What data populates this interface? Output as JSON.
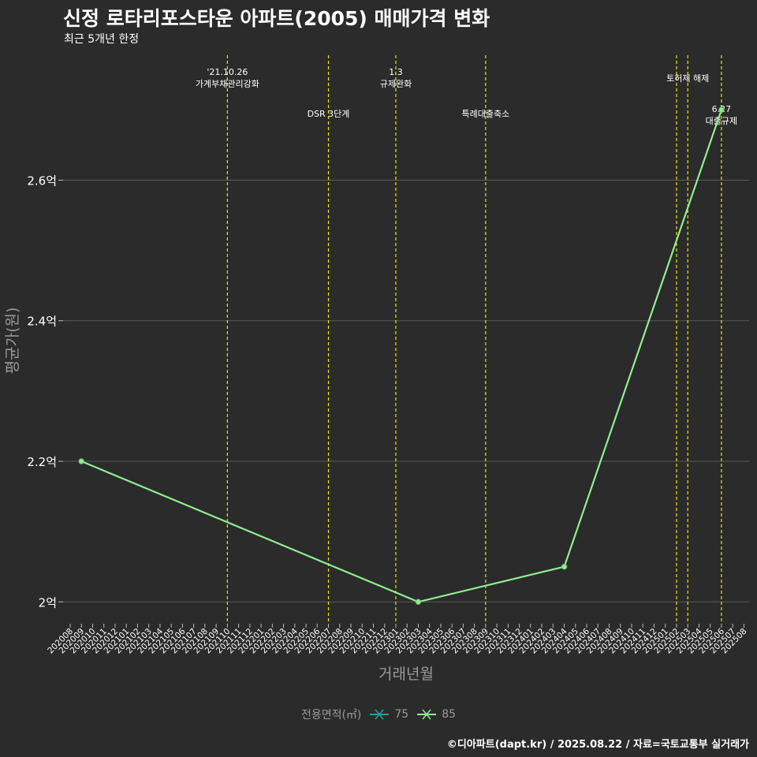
{
  "header": {
    "title": "신정 로타리포스타운 아파트(2005) 매매가격 변화",
    "subtitle": "최근 5개년 한정"
  },
  "caption": "©디아파트(dapt.kr) / 2025.08.22 / 자료=국토교통부 실거래가",
  "colors": {
    "background": "#2b2b2b",
    "grid": "#5a5a5a",
    "series_75": "#2a9d9d",
    "series_85": "#90ee90",
    "event_line": "#e8e800"
  },
  "chart_data": {
    "type": "line",
    "title": "신정 로타리포스타운 아파트(2005) 매매가격 변화",
    "xlabel": "거래년월",
    "ylabel": "평균가(원)",
    "ylim": [
      1.97,
      2.78
    ],
    "yticks": [
      2.0,
      2.2,
      2.4,
      2.6
    ],
    "ytick_labels": [
      "2억",
      "2.2억",
      "2.4억",
      "2.6억"
    ],
    "categories": [
      "202008",
      "202009",
      "202010",
      "202011",
      "202012",
      "202101",
      "202102",
      "202103",
      "202104",
      "202105",
      "202106",
      "202107",
      "202108",
      "202109",
      "202110",
      "202111",
      "202112",
      "202201",
      "202202",
      "202203",
      "202204",
      "202205",
      "202206",
      "202207",
      "202208",
      "202209",
      "202210",
      "202211",
      "202212",
      "202301",
      "202302",
      "202303",
      "202304",
      "202305",
      "202306",
      "202307",
      "202308",
      "202309",
      "202310",
      "202311",
      "202312",
      "202401",
      "202402",
      "202403",
      "202404",
      "202405",
      "202406",
      "202407",
      "202408",
      "202409",
      "202410",
      "202411",
      "202412",
      "202501",
      "202502",
      "202503",
      "202504",
      "202505",
      "202506",
      "202507",
      "202508"
    ],
    "legend_title": "전용면적(㎡)",
    "series": [
      {
        "name": "75",
        "color": "#2a9d9d",
        "points": []
      },
      {
        "name": "85",
        "color": "#90ee90",
        "points": [
          {
            "x": "202009",
            "y": 2.2
          },
          {
            "x": "202303",
            "y": 2.0
          },
          {
            "x": "202404",
            "y": 2.05
          },
          {
            "x": "202506",
            "y": 2.7
          }
        ]
      }
    ],
    "events": [
      {
        "x": "202110",
        "label": "'21.10.26\n가계부채관리강화",
        "row": 0
      },
      {
        "x": "202207",
        "label": "DSR 3단계",
        "row": 1
      },
      {
        "x": "202301",
        "label": "1.3\n규제완화",
        "row": 0
      },
      {
        "x": "202309",
        "label": "특례대출축소",
        "row": 1
      },
      {
        "x": "202502",
        "label": "",
        "row": 0
      },
      {
        "x": "202503",
        "label": "토허제 해제",
        "row": 0
      },
      {
        "x": "202506",
        "label": "6.27\n대출규제",
        "row": 2
      }
    ]
  }
}
